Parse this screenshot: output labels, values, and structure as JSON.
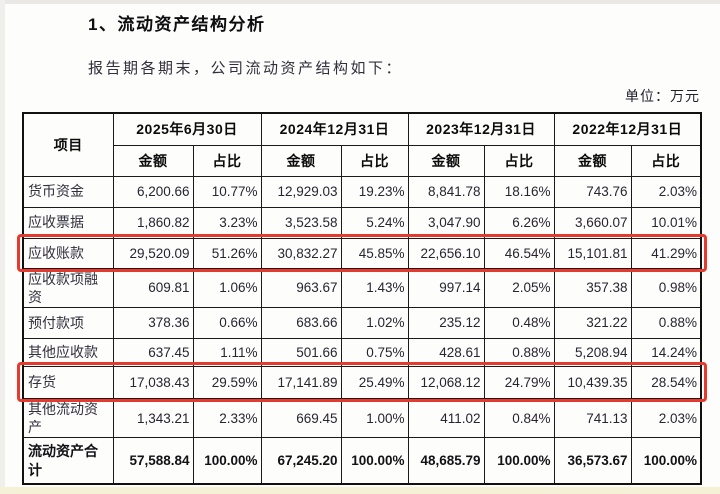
{
  "page": {
    "heading": "1、流动资产结构分析",
    "intro": "报告期各期末，公司流动资产结构如下：",
    "unit_label": "单位：万元"
  },
  "table": {
    "item_header": "项目",
    "period_headers": [
      "2025年6月30日",
      "2024年12月31日",
      "2023年12月31日",
      "2022年12月31日"
    ],
    "sub_headers": {
      "amount": "金额",
      "ratio": "占比"
    },
    "rows": [
      {
        "item": "货币资金",
        "values": [
          "6,200.66",
          "10.77%",
          "12,929.03",
          "19.23%",
          "8,841.78",
          "18.16%",
          "743.76",
          "2.03%"
        ],
        "highlight": false,
        "total": false
      },
      {
        "item": "应收票据",
        "values": [
          "1,860.82",
          "3.23%",
          "3,523.58",
          "5.24%",
          "3,047.90",
          "6.26%",
          "3,660.07",
          "10.01%"
        ],
        "highlight": false,
        "total": false
      },
      {
        "item": "应收账款",
        "values": [
          "29,520.09",
          "51.26%",
          "30,832.27",
          "45.85%",
          "22,656.10",
          "46.54%",
          "15,101.81",
          "41.29%"
        ],
        "highlight": true,
        "total": false
      },
      {
        "item": "应收款项融资",
        "values": [
          "609.81",
          "1.06%",
          "963.67",
          "1.43%",
          "997.14",
          "2.05%",
          "357.38",
          "0.98%"
        ],
        "highlight": false,
        "total": false
      },
      {
        "item": "预付款项",
        "values": [
          "378.36",
          "0.66%",
          "683.66",
          "1.02%",
          "235.12",
          "0.48%",
          "321.22",
          "0.88%"
        ],
        "highlight": false,
        "total": false
      },
      {
        "item": "其他应收款",
        "values": [
          "637.45",
          "1.11%",
          "501.66",
          "0.75%",
          "428.61",
          "0.88%",
          "5,208.94",
          "14.24%"
        ],
        "highlight": false,
        "total": false
      },
      {
        "item": "存货",
        "values": [
          "17,038.43",
          "29.59%",
          "17,141.89",
          "25.49%",
          "12,068.12",
          "24.79%",
          "10,439.35",
          "28.54%"
        ],
        "highlight": true,
        "total": false
      },
      {
        "item": "其他流动资产",
        "values": [
          "1,343.21",
          "2.33%",
          "669.45",
          "1.00%",
          "411.02",
          "0.84%",
          "741.13",
          "2.03%"
        ],
        "highlight": false,
        "total": false
      },
      {
        "item": "流动资产合计",
        "values": [
          "57,588.84",
          "100.00%",
          "67,245.20",
          "100.00%",
          "48,685.79",
          "100.00%",
          "36,573.67",
          "100.00%"
        ],
        "highlight": false,
        "total": true
      }
    ]
  },
  "colors": {
    "highlight_red": "#e63a2e",
    "border_black": "#1a1a1a"
  }
}
